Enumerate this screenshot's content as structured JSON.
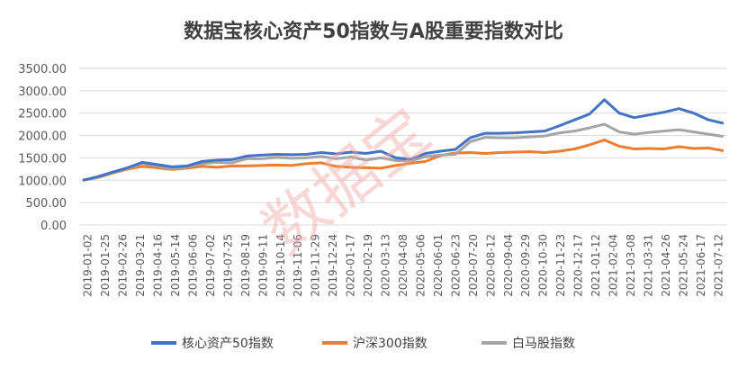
{
  "chart_data": {
    "type": "line",
    "title": "数据宝核心资产50指数与A股重要指数对比",
    "watermark": "数据宝",
    "xlabel": "",
    "ylabel": "",
    "ylim": [
      0,
      3500
    ],
    "yticks": [
      "0.00",
      "500.00",
      "1000.00",
      "1500.00",
      "2000.00",
      "2500.00",
      "3000.00",
      "3500.00"
    ],
    "xticks": [
      "2019-01-02",
      "2019-01-25",
      "2019-02-26",
      "2019-03-21",
      "2019-04-16",
      "2019-05-14",
      "2019-06-06",
      "2019-07-02",
      "2019-07-25",
      "2019-08-19",
      "2019-09-11",
      "2019-10-14",
      "2019-11-06",
      "2019-11-29",
      "2019-12-24",
      "2020-01-17",
      "2020-02-19",
      "2020-03-13",
      "2020-04-08",
      "2020-05-06",
      "2020-06-01",
      "2020-06-23",
      "2020-07-20",
      "2020-08-12",
      "2020-09-04",
      "2020-09-29",
      "2020-10-30",
      "2020-11-23",
      "2020-12-17",
      "2021-01-12",
      "2021-02-04",
      "2021-03-08",
      "2021-03-31",
      "2021-04-26",
      "2021-05-24",
      "2021-06-17",
      "2021-07-12"
    ],
    "grid": true,
    "legend_position": "bottom",
    "series": [
      {
        "name": "核心资产50指数",
        "color": "#4472C4",
        "values": [
          1000,
          1080,
          1180,
          1280,
          1400,
          1350,
          1300,
          1320,
          1420,
          1450,
          1460,
          1540,
          1560,
          1580,
          1570,
          1580,
          1620,
          1590,
          1630,
          1600,
          1650,
          1500,
          1470,
          1600,
          1650,
          1690,
          1950,
          2050,
          2050,
          2060,
          2080,
          2100,
          2220,
          2350,
          2480,
          2800,
          2500,
          2400,
          2460,
          2520,
          2600,
          2500,
          2350,
          2270
        ]
      },
      {
        "name": "沪深300指数",
        "color": "#ED7D31",
        "values": [
          1000,
          1060,
          1160,
          1250,
          1310,
          1280,
          1240,
          1270,
          1310,
          1290,
          1320,
          1320,
          1330,
          1340,
          1330,
          1370,
          1390,
          1310,
          1290,
          1280,
          1270,
          1330,
          1380,
          1420,
          1550,
          1610,
          1620,
          1600,
          1620,
          1630,
          1640,
          1620,
          1650,
          1700,
          1790,
          1900,
          1760,
          1700,
          1710,
          1700,
          1750,
          1710,
          1720,
          1660
        ]
      },
      {
        "name": "白马股指数",
        "color": "#A5A5A5",
        "values": [
          1000,
          1070,
          1170,
          1260,
          1380,
          1320,
          1250,
          1290,
          1370,
          1400,
          1390,
          1480,
          1480,
          1510,
          1490,
          1500,
          1530,
          1480,
          1520,
          1450,
          1500,
          1440,
          1430,
          1530,
          1560,
          1580,
          1860,
          1960,
          1950,
          1950,
          1970,
          1990,
          2060,
          2100,
          2170,
          2250,
          2080,
          2030,
          2070,
          2100,
          2130,
          2080,
          2030,
          1980
        ]
      }
    ]
  }
}
